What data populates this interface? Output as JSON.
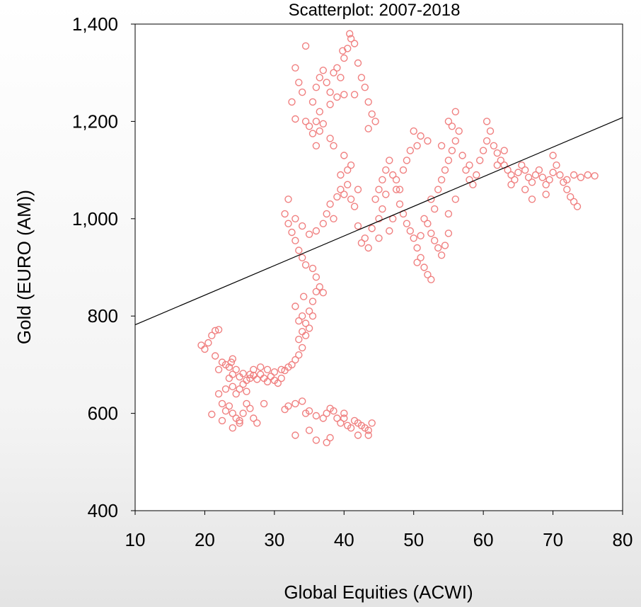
{
  "chart_data": {
    "type": "scatter",
    "title": "Scatterplot: 2007-2018",
    "xlabel": "Global Equities (ACWI)",
    "ylabel": "Gold (EURO (AM))",
    "xlim": [
      10,
      80
    ],
    "ylim": [
      400,
      1400
    ],
    "xticks": [
      10,
      20,
      30,
      40,
      50,
      60,
      70,
      80
    ],
    "yticks": [
      400,
      600,
      800,
      1000,
      1200,
      1400
    ],
    "xtick_labels": [
      "10",
      "20",
      "30",
      "40",
      "50",
      "60",
      "70",
      "80"
    ],
    "ytick_labels": [
      "400",
      "600",
      "800",
      "1,000",
      "1,200",
      "1,400"
    ],
    "grid": false,
    "marker": "open-circle",
    "marker_color": "#f08080",
    "fit_line_color": "#000000",
    "fit_line": {
      "x": [
        10,
        80
      ],
      "y": [
        782,
        1208
      ]
    },
    "points": [
      [
        19.5,
        740
      ],
      [
        20,
        732
      ],
      [
        20.5,
        745
      ],
      [
        21,
        760
      ],
      [
        21.5,
        770
      ],
      [
        22,
        772
      ],
      [
        21.5,
        718
      ],
      [
        22.5,
        705
      ],
      [
        22,
        690
      ],
      [
        23,
        700
      ],
      [
        23.5,
        695
      ],
      [
        23.8,
        705
      ],
      [
        24,
        712
      ],
      [
        24.5,
        690
      ],
      [
        24,
        680
      ],
      [
        25,
        675
      ],
      [
        25.5,
        682
      ],
      [
        26,
        668
      ],
      [
        26.5,
        672
      ],
      [
        27,
        678
      ],
      [
        27.5,
        670
      ],
      [
        28,
        680
      ],
      [
        28.5,
        672
      ],
      [
        29,
        665
      ],
      [
        29.5,
        676
      ],
      [
        30,
        668
      ],
      [
        30.5,
        662
      ],
      [
        31,
        672
      ],
      [
        31.5,
        688
      ],
      [
        32,
        695
      ],
      [
        32.5,
        700
      ],
      [
        33,
        710
      ],
      [
        33.5,
        720
      ],
      [
        34,
        735
      ],
      [
        33.5,
        752
      ],
      [
        34,
        768
      ],
      [
        34.5,
        785
      ],
      [
        34,
        800
      ],
      [
        35,
        810
      ],
      [
        35.5,
        830
      ],
      [
        34.2,
        840
      ],
      [
        33.5,
        790
      ],
      [
        33,
        820
      ],
      [
        34.5,
        760
      ],
      [
        35,
        775
      ],
      [
        35.5,
        800
      ],
      [
        36,
        850
      ],
      [
        36.5,
        860
      ],
      [
        37,
        848
      ],
      [
        36,
        880
      ],
      [
        35.5,
        898
      ],
      [
        34.5,
        905
      ],
      [
        34,
        920
      ],
      [
        33.5,
        935
      ],
      [
        33,
        955
      ],
      [
        32.5,
        972
      ],
      [
        32,
        990
      ],
      [
        31.5,
        1010
      ],
      [
        32,
        1040
      ],
      [
        33,
        1000
      ],
      [
        34,
        985
      ],
      [
        35,
        968
      ],
      [
        36,
        975
      ],
      [
        37,
        990
      ],
      [
        37.5,
        1010
      ],
      [
        38,
        1030
      ],
      [
        38.5,
        1000
      ],
      [
        39,
        1045
      ],
      [
        39.5,
        1060
      ],
      [
        40,
        1050
      ],
      [
        40.5,
        1070
      ],
      [
        41,
        1040
      ],
      [
        41.5,
        1025
      ],
      [
        42,
        1060
      ],
      [
        40.5,
        1100
      ],
      [
        40,
        1130
      ],
      [
        41,
        1110
      ],
      [
        38.5,
        1150
      ],
      [
        38,
        1165
      ],
      [
        39.5,
        1090
      ],
      [
        35,
        1190
      ],
      [
        35.5,
        1175
      ],
      [
        36,
        1200
      ],
      [
        36.5,
        1220
      ],
      [
        35.5,
        1240
      ],
      [
        36,
        1270
      ],
      [
        36.5,
        1290
      ],
      [
        37,
        1305
      ],
      [
        37.5,
        1280
      ],
      [
        38,
        1260
      ],
      [
        38.5,
        1300
      ],
      [
        39,
        1310
      ],
      [
        39.5,
        1290
      ],
      [
        40,
        1330
      ],
      [
        40.5,
        1350
      ],
      [
        41,
        1370
      ],
      [
        41.5,
        1360
      ],
      [
        40.8,
        1380
      ],
      [
        39.8,
        1345
      ],
      [
        42,
        1320
      ],
      [
        42.5,
        1290
      ],
      [
        43,
        1270
      ],
      [
        43.5,
        1240
      ],
      [
        44,
        1215
      ],
      [
        44.5,
        1200
      ],
      [
        43.5,
        1185
      ],
      [
        41.5,
        1255
      ],
      [
        40,
        1255
      ],
      [
        39,
        1250
      ],
      [
        33,
        1310
      ],
      [
        33.5,
        1280
      ],
      [
        34,
        1260
      ],
      [
        34.5,
        1355
      ],
      [
        33,
        1205
      ],
      [
        34.5,
        1200
      ],
      [
        36.5,
        1180
      ],
      [
        37,
        1195
      ],
      [
        36,
        1150
      ],
      [
        32.5,
        1240
      ],
      [
        38,
        1235
      ],
      [
        44.5,
        1040
      ],
      [
        45,
        1060
      ],
      [
        45.5,
        1080
      ],
      [
        46,
        1100
      ],
      [
        46.5,
        1120
      ],
      [
        47,
        1090
      ],
      [
        47.5,
        1060
      ],
      [
        48,
        1030
      ],
      [
        48.5,
        1010
      ],
      [
        49,
        990
      ],
      [
        49.5,
        975
      ],
      [
        50,
        960
      ],
      [
        50.5,
        940
      ],
      [
        51,
        920
      ],
      [
        51.5,
        900
      ],
      [
        52,
        885
      ],
      [
        52.5,
        875
      ],
      [
        50.5,
        910
      ],
      [
        51,
        965
      ],
      [
        51.5,
        1000
      ],
      [
        52,
        990
      ],
      [
        52.5,
        970
      ],
      [
        53,
        955
      ],
      [
        53.5,
        940
      ],
      [
        54,
        925
      ],
      [
        54.5,
        945
      ],
      [
        55,
        970
      ],
      [
        53,
        1020
      ],
      [
        52.5,
        1040
      ],
      [
        53.5,
        1060
      ],
      [
        54,
        1080
      ],
      [
        54.5,
        1100
      ],
      [
        55,
        1120
      ],
      [
        55.5,
        1140
      ],
      [
        56,
        1160
      ],
      [
        56.5,
        1180
      ],
      [
        54,
        1150
      ],
      [
        55,
        1200
      ],
      [
        56,
        1220
      ],
      [
        55.5,
        1190
      ],
      [
        57,
        1130
      ],
      [
        57.5,
        1100
      ],
      [
        58,
        1080
      ],
      [
        58.5,
        1070
      ],
      [
        59,
        1090
      ],
      [
        59.5,
        1120
      ],
      [
        60,
        1140
      ],
      [
        60.5,
        1160
      ],
      [
        61,
        1180
      ],
      [
        60.5,
        1200
      ],
      [
        61.5,
        1150
      ],
      [
        62,
        1135
      ],
      [
        62.5,
        1120
      ],
      [
        63,
        1110
      ],
      [
        63.5,
        1100
      ],
      [
        64,
        1090
      ],
      [
        64.5,
        1080
      ],
      [
        65,
        1095
      ],
      [
        65.5,
        1110
      ],
      [
        66,
        1100
      ],
      [
        66.5,
        1085
      ],
      [
        67,
        1075
      ],
      [
        67.5,
        1090
      ],
      [
        68,
        1100
      ],
      [
        68.5,
        1085
      ],
      [
        69,
        1070
      ],
      [
        69.5,
        1080
      ],
      [
        70,
        1095
      ],
      [
        70.5,
        1110
      ],
      [
        71,
        1090
      ],
      [
        71.5,
        1075
      ],
      [
        72,
        1060
      ],
      [
        72.5,
        1045
      ],
      [
        73,
        1035
      ],
      [
        73.5,
        1025
      ],
      [
        72,
        1080
      ],
      [
        73,
        1090
      ],
      [
        74,
        1085
      ],
      [
        75,
        1090
      ],
      [
        76,
        1088
      ],
      [
        70,
        1130
      ],
      [
        69,
        1050
      ],
      [
        67,
        1040
      ],
      [
        64,
        1070
      ],
      [
        66,
        1060
      ],
      [
        63,
        1140
      ],
      [
        62,
        1110
      ],
      [
        58,
        1110
      ],
      [
        56,
        1040
      ],
      [
        55,
        1010
      ],
      [
        50,
        1180
      ],
      [
        51,
        1170
      ],
      [
        52,
        1160
      ],
      [
        50.5,
        1150
      ],
      [
        49.5,
        1140
      ],
      [
        49,
        1120
      ],
      [
        48.5,
        1100
      ],
      [
        47.5,
        1080
      ],
      [
        46,
        1050
      ],
      [
        45.5,
        1020
      ],
      [
        47,
        1000
      ],
      [
        46.5,
        975
      ],
      [
        45,
        960
      ],
      [
        44,
        980
      ],
      [
        43,
        960
      ],
      [
        42,
        985
      ],
      [
        43.5,
        940
      ],
      [
        42.5,
        950
      ],
      [
        45,
        1000
      ],
      [
        48,
        1060
      ],
      [
        22,
        640
      ],
      [
        22.5,
        620
      ],
      [
        23,
        605
      ],
      [
        23.5,
        615
      ],
      [
        24,
        600
      ],
      [
        24.5,
        590
      ],
      [
        25,
        585
      ],
      [
        25.5,
        600
      ],
      [
        26,
        620
      ],
      [
        26.5,
        610
      ],
      [
        27,
        590
      ],
      [
        24,
        570
      ],
      [
        25,
        580
      ],
      [
        22.5,
        585
      ],
      [
        21,
        598
      ],
      [
        27.5,
        580
      ],
      [
        28.5,
        620
      ],
      [
        24.5,
        640
      ],
      [
        25,
        650
      ],
      [
        23,
        650
      ],
      [
        31.5,
        608
      ],
      [
        32,
        615
      ],
      [
        33,
        620
      ],
      [
        34,
        625
      ],
      [
        34.5,
        600
      ],
      [
        35,
        605
      ],
      [
        36,
        595
      ],
      [
        37,
        590
      ],
      [
        37.5,
        600
      ],
      [
        38,
        610
      ],
      [
        38.5,
        605
      ],
      [
        39,
        590
      ],
      [
        39.5,
        580
      ],
      [
        40,
        590
      ],
      [
        40.5,
        575
      ],
      [
        41,
        570
      ],
      [
        41.5,
        585
      ],
      [
        42,
        580
      ],
      [
        42.5,
        575
      ],
      [
        43,
        570
      ],
      [
        43.5,
        565
      ],
      [
        44,
        580
      ],
      [
        36,
        545
      ],
      [
        37.5,
        540
      ],
      [
        38,
        550
      ],
      [
        33,
        555
      ],
      [
        35,
        565
      ],
      [
        40,
        600
      ],
      [
        42,
        555
      ],
      [
        43.5,
        555
      ],
      [
        28,
        695
      ],
      [
        27,
        690
      ],
      [
        26.5,
        680
      ],
      [
        25.5,
        660
      ],
      [
        26,
        645
      ],
      [
        24,
        655
      ],
      [
        23.5,
        672
      ],
      [
        29,
        690
      ],
      [
        30,
        685
      ],
      [
        31,
        690
      ]
    ]
  }
}
